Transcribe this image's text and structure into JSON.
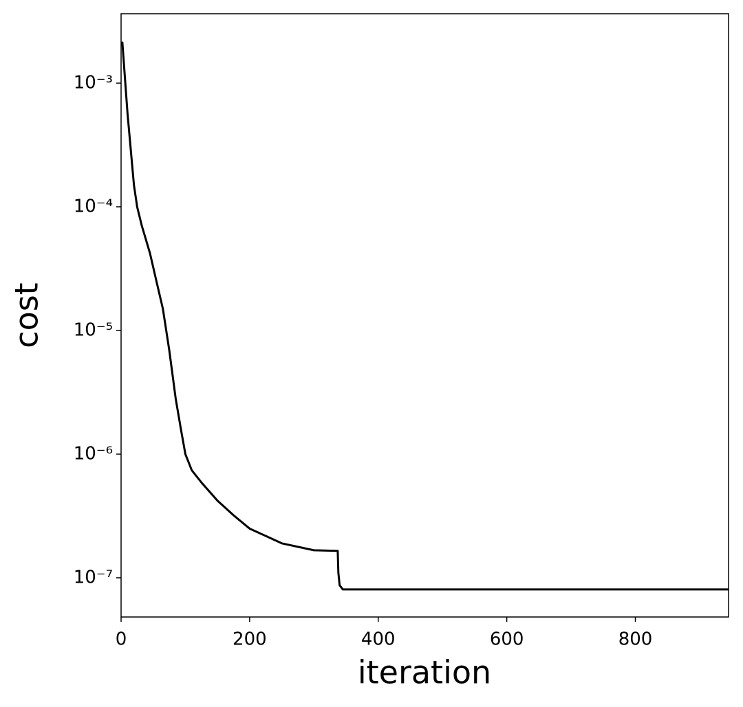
{
  "chart_data": {
    "type": "line",
    "xlabel": "iteration",
    "ylabel": "cost",
    "x": [
      0,
      2,
      10,
      20,
      25,
      32,
      45,
      55,
      65,
      75,
      85,
      93,
      100,
      110,
      125,
      150,
      175,
      200,
      250,
      300,
      337,
      338,
      340,
      345,
      360,
      945
    ],
    "series": [
      {
        "name": "cost",
        "color": "#000000",
        "values": [
          0.002,
          0.00213,
          0.00057,
          0.00015,
          0.0001,
          7.1e-05,
          4.2e-05,
          2.5e-05,
          1.5e-05,
          6.9e-06,
          2.8e-06,
          1.6e-06,
          1e-06,
          7.4e-07,
          5.9e-07,
          4.2e-07,
          3.2e-07,
          2.5e-07,
          1.9e-07,
          1.67e-07,
          1.65e-07,
          1.1e-07,
          8.7e-08,
          8.05e-08,
          8.05e-08,
          8.05e-08
        ]
      }
    ],
    "xlim": [
      0,
      945
    ],
    "xticks": [
      0,
      200,
      400,
      600,
      800
    ],
    "ylim": [
      4.82e-08,
      0.00364
    ],
    "log_y": true,
    "yticks": [
      {
        "value": 1e-07,
        "label": "10⁻⁷"
      },
      {
        "value": 1e-06,
        "label": "10⁻⁶"
      },
      {
        "value": 1e-05,
        "label": "10⁻⁵"
      },
      {
        "value": 0.0001,
        "label": "10⁻⁴"
      },
      {
        "value": 0.001,
        "label": "10⁻³"
      }
    ],
    "grid": false
  }
}
